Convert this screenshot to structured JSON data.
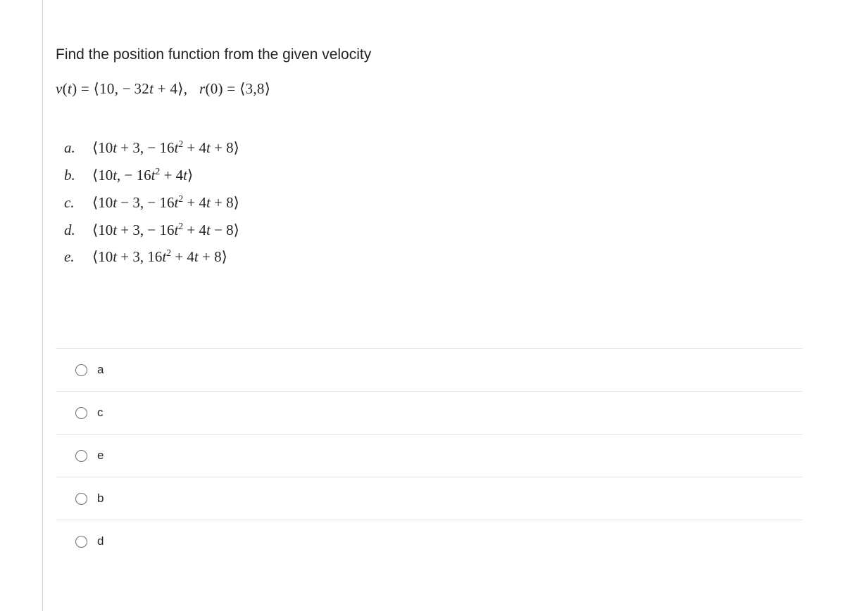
{
  "question": {
    "prompt": "Find the position function from the given velocity",
    "equation_html": "v<span class='upright'>(</span>t<span class='upright'>)</span> <span class='upright'>=</span> <span class='upright'>⟨10, −&#8201;32</span>t <span class='upright'>+ 4⟩,</span>&nbsp;&nbsp;&nbsp;r<span class='upright'>(0) = ⟨3,8⟩</span>"
  },
  "choices": [
    {
      "letter": "a.",
      "expr_html": "<span class='up'>⟨10</span>t <span class='up'>+ 3, − 16</span>t<sup>2</sup> <span class='up'>+ 4</span>t <span class='up'>+ 8⟩</span>"
    },
    {
      "letter": "b.",
      "expr_html": "<span class='up'>⟨10</span>t<span class='up'>, − 16</span>t<sup>2</sup> <span class='up'>+ 4</span>t<span class='up'>⟩</span>"
    },
    {
      "letter": "c.",
      "expr_html": "<span class='up'>⟨10</span>t <span class='up'>− 3, − 16</span>t<sup>2</sup> <span class='up'>+ 4</span>t <span class='up'>+ 8⟩</span>"
    },
    {
      "letter": "d.",
      "expr_html": "<span class='up'>⟨10</span>t <span class='up'>+ 3, − 16</span>t<sup>2</sup> <span class='up'>+ 4</span>t <span class='up'>− 8⟩</span>"
    },
    {
      "letter": "e.",
      "expr_html": "<span class='up'>⟨10</span>t <span class='up'>+ 3, 16</span>t<sup>2</sup> <span class='up'>+ 4</span>t <span class='up'>+ 8⟩</span>"
    }
  ],
  "answer_options": [
    {
      "key": "a",
      "label": "a"
    },
    {
      "key": "c",
      "label": "c"
    },
    {
      "key": "e",
      "label": "e"
    },
    {
      "key": "b",
      "label": "b"
    },
    {
      "key": "d",
      "label": "d"
    }
  ],
  "colors": {
    "text": "#212529",
    "divider": "#e5e5e5",
    "left_border": "#d0d0d0",
    "radio_border": "#6c6c6c",
    "background": "#ffffff"
  }
}
